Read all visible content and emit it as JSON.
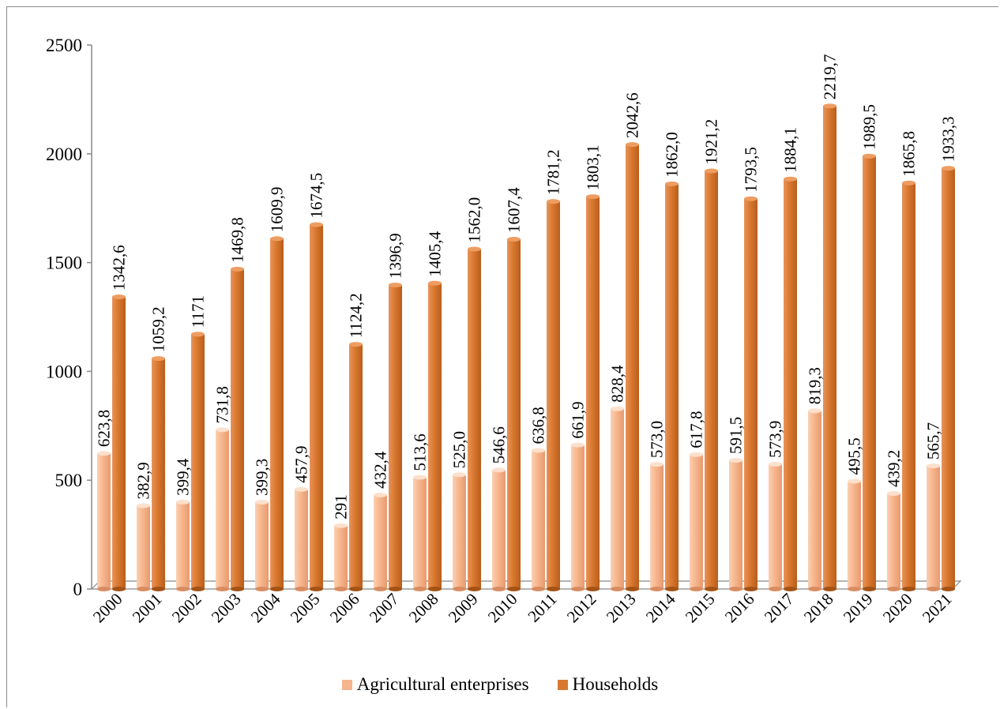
{
  "chart_data": {
    "type": "bar",
    "title": "",
    "xlabel": "",
    "ylabel": "",
    "ylim": [
      0,
      2500
    ],
    "yticks": [
      "0",
      "500",
      "1000",
      "1500",
      "2000",
      "2500"
    ],
    "grid": false,
    "legend_position": "bottom",
    "categories": [
      "2000",
      "2001",
      "2002",
      "2003",
      "2004",
      "2005",
      "2006",
      "2007",
      "2008",
      "2009",
      "2010",
      "2011",
      "2012",
      "2013",
      "2014",
      "2015",
      "2016",
      "2017",
      "2018",
      "2019",
      "2020",
      "2021"
    ],
    "series": [
      {
        "name": "Agricultural enterprises",
        "color": "#f7b58c",
        "values": [
          623.8,
          382.9,
          399.4,
          731.8,
          399.3,
          457.9,
          291,
          432.4,
          513.6,
          525.0,
          546.6,
          636.8,
          661.9,
          828.4,
          573.0,
          617.8,
          591.5,
          573.9,
          819.3,
          495.5,
          439.2,
          565.7
        ],
        "labels": [
          "623,8",
          "382,9",
          "399,4",
          "731,8",
          "399,3",
          "457,9",
          "291",
          "432,4",
          "513,6",
          "525,0",
          "546,6",
          "636,8",
          "661,9",
          "828,4",
          "573,0",
          "617,8",
          "591,5",
          "573,9",
          "819,3",
          "495,5",
          "439,2",
          "565,7"
        ]
      },
      {
        "name": "Households",
        "color": "#d9782f",
        "values": [
          1342.6,
          1059.2,
          1171,
          1469.8,
          1609.9,
          1674.5,
          1124.2,
          1396.9,
          1405.4,
          1562.0,
          1607.4,
          1781.2,
          1803.1,
          2042.6,
          1862.0,
          1921.2,
          1793.5,
          1884.1,
          2219.7,
          1989.5,
          1865.8,
          1933.3
        ],
        "labels": [
          "1342,6",
          "1059,2",
          "1171",
          "1469,8",
          "1609,9",
          "1674,5",
          "1124,2",
          "1396,9",
          "1405,4",
          "1562,0",
          "1607,4",
          "1781,2",
          "1803,1",
          "2042,6",
          "1862,0",
          "1921,2",
          "1793,5",
          "1884,1",
          "2219,7",
          "1989,5",
          "1865,8",
          "1933,3"
        ]
      }
    ]
  }
}
